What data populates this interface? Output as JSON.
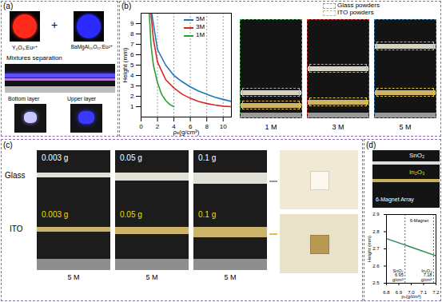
{
  "panels": {
    "a": {
      "letter": "(a)",
      "phosphor_left": "Y₂O₃:Eu³⁺",
      "plus": "+",
      "phosphor_right": "BaMgAl₁₀O₁₇:Eu²⁺",
      "title": "Mixtures separation",
      "bottom_label": "Bottom layer",
      "upper_label": "Upper layer"
    },
    "b": {
      "letter": "(b)",
      "legend_glass": "Glass powders",
      "legend_ito": "ITO powders",
      "images": [
        "1 M",
        "3 M",
        "5 M"
      ]
    },
    "c": {
      "letter": "(c)",
      "row_labels": [
        "Glass",
        "ITO"
      ],
      "glass_masses": [
        "0.003 g",
        "0.05 g",
        "0.1 g"
      ],
      "ito_masses": [
        "0.003 g",
        "0.05 g",
        "0.1 g"
      ],
      "images": [
        "5 M",
        "5 M",
        "5 M"
      ]
    },
    "d": {
      "letter": "(d)",
      "top_layer": "SnO₂",
      "bottom_layer": "In₂O₃",
      "caption": "6-Magnet Array"
    }
  },
  "chart_data": [
    {
      "type": "line",
      "x_label": "ρₛ(g/cm³)",
      "y_label": "Height (mm)",
      "xlim": [
        0,
        11
      ],
      "xticks": [
        0,
        2,
        4,
        6,
        8,
        10
      ],
      "ylim": [
        0,
        10
      ],
      "yticks": [
        1,
        2,
        3,
        4,
        5,
        6,
        7,
        8,
        9
      ],
      "grid": true,
      "legend": "top-right",
      "series": [
        {
          "name": "5M",
          "color": "#1f77b4",
          "x": [
            1.3,
            2,
            3,
            4,
            5,
            6,
            7,
            8,
            9,
            10,
            11
          ],
          "values": [
            10,
            6.5,
            5,
            4,
            3.4,
            2.9,
            2.5,
            2.2,
            1.9,
            1.7,
            1.5
          ]
        },
        {
          "name": "3M",
          "color": "#d62728",
          "x": [
            1.2,
            1.5,
            2,
            3,
            4,
            5,
            6,
            7,
            8,
            9,
            10,
            11
          ],
          "values": [
            10,
            7.5,
            5.3,
            3.6,
            2.8,
            2.2,
            1.8,
            1.5,
            1.3,
            1.15,
            1.05,
            1.0
          ]
        },
        {
          "name": "1M",
          "color": "#2ca02c",
          "x": [
            1.0,
            1.2,
            1.5,
            2,
            2.5,
            3,
            3.5,
            4
          ],
          "values": [
            10,
            7,
            5,
            3.3,
            2.2,
            1.6,
            1.2,
            1.0
          ]
        }
      ]
    },
    {
      "type": "line",
      "x_label": "ρₛ(g/cm³)",
      "y_label": "Height (mm)",
      "xlim": [
        6.8,
        7.2
      ],
      "xticks": [
        6.8,
        6.9,
        {
          "value": 7,
          "label": "7.0"
        },
        7.1,
        7.2
      ],
      "ylim": [
        2.5,
        2.9
      ],
      "yticks": [
        2.5,
        2.6,
        2.7,
        2.8,
        2.9
      ],
      "x": [
        6.8,
        7.2
      ],
      "values": [
        2.76,
        2.66
      ],
      "color": "#2e8b57",
      "vlines": [
        {
          "x": 6.95,
          "label": "SnO₂",
          "sublabel": "6.95 g/cm³"
        },
        {
          "x": 7.18,
          "label": "In₂O₃",
          "sublabel": "7.18 g/cm³"
        }
      ],
      "annotations": [
        "6-Magnet"
      ]
    }
  ]
}
